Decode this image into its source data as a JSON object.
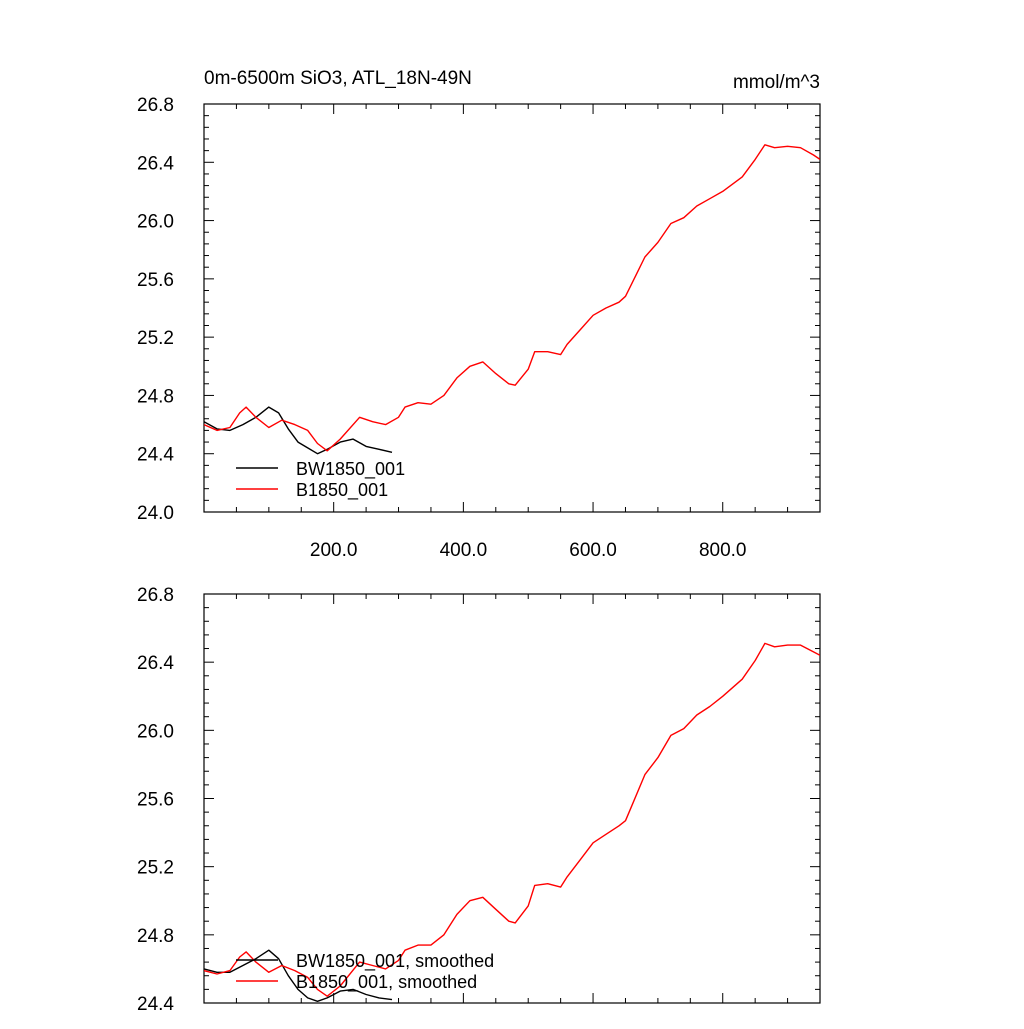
{
  "chart_data": [
    {
      "type": "line",
      "title": "0m-6500m SiO3, ATL_18N-49N",
      "units": "mmol/m^3",
      "xlabel": "",
      "ylabel": "",
      "xlim": [
        0,
        950
      ],
      "ylim": [
        24.0,
        26.8
      ],
      "xticks": [
        200,
        400,
        600,
        800
      ],
      "xtick_labels": [
        "200.0",
        "400.0",
        "600.0",
        "800.0"
      ],
      "yticks": [
        24.0,
        24.4,
        24.8,
        25.2,
        25.6,
        26.0,
        26.4,
        26.8
      ],
      "ytick_labels": [
        "24.0",
        "24.4",
        "24.8",
        "25.2",
        "25.6",
        "26.0",
        "26.4",
        "26.8"
      ],
      "grid": false,
      "legend": "bottom-left",
      "series": [
        {
          "name": "BW1850_001",
          "color": "#000000",
          "x": [
            0,
            20,
            40,
            60,
            80,
            100,
            115,
            130,
            145,
            160,
            175,
            190,
            210,
            230,
            250,
            270,
            290
          ],
          "y": [
            24.62,
            24.57,
            24.56,
            24.6,
            24.65,
            24.72,
            24.68,
            24.57,
            24.48,
            24.44,
            24.4,
            24.43,
            24.48,
            24.5,
            24.45,
            24.43,
            24.41
          ]
        },
        {
          "name": "B1850_001",
          "color": "#ff0000",
          "x": [
            0,
            20,
            40,
            55,
            65,
            80,
            100,
            120,
            140,
            160,
            175,
            190,
            210,
            240,
            260,
            280,
            300,
            310,
            330,
            350,
            370,
            390,
            410,
            430,
            450,
            470,
            480,
            500,
            510,
            530,
            550,
            560,
            580,
            600,
            620,
            640,
            650,
            660,
            680,
            700,
            720,
            740,
            760,
            780,
            800,
            830,
            850,
            865,
            880,
            900,
            920,
            940,
            950
          ],
          "y": [
            24.6,
            24.56,
            24.58,
            24.68,
            24.72,
            24.65,
            24.58,
            24.63,
            24.6,
            24.56,
            24.47,
            24.42,
            24.5,
            24.65,
            24.62,
            24.6,
            24.65,
            24.72,
            24.75,
            24.74,
            24.8,
            24.92,
            25.0,
            25.03,
            24.95,
            24.88,
            24.87,
            24.98,
            25.1,
            25.1,
            25.08,
            25.15,
            25.25,
            25.35,
            25.4,
            25.44,
            25.48,
            25.57,
            25.75,
            25.85,
            25.98,
            26.02,
            26.1,
            26.15,
            26.2,
            26.3,
            26.42,
            26.52,
            26.5,
            26.51,
            26.5,
            26.45,
            26.42
          ]
        }
      ]
    },
    {
      "type": "line",
      "title": "",
      "xlabel": "",
      "ylabel": "",
      "xlim": [
        0,
        950
      ],
      "ylim": [
        24.4,
        26.8
      ],
      "xticks": [
        200,
        400,
        600,
        800
      ],
      "xtick_labels": [],
      "yticks": [
        24.4,
        24.8,
        25.2,
        25.6,
        26.0,
        26.4,
        26.8
      ],
      "ytick_labels": [
        "24.4",
        "24.8",
        "25.2",
        "25.6",
        "26.0",
        "26.4",
        "26.8"
      ],
      "grid": false,
      "legend": "bottom-left",
      "series": [
        {
          "name": "BW1850_001, smoothed",
          "color": "#000000",
          "x": [
            0,
            20,
            40,
            60,
            80,
            100,
            115,
            130,
            145,
            160,
            175,
            190,
            210,
            230,
            250,
            270,
            290
          ],
          "y": [
            24.6,
            24.58,
            24.58,
            24.62,
            24.66,
            24.71,
            24.66,
            24.56,
            24.48,
            24.43,
            24.41,
            24.43,
            24.47,
            24.48,
            24.45,
            24.43,
            24.42
          ]
        },
        {
          "name": "B1850_001, smoothed",
          "color": "#ff0000",
          "x": [
            0,
            20,
            40,
            55,
            65,
            80,
            100,
            120,
            140,
            160,
            175,
            190,
            210,
            240,
            260,
            280,
            300,
            310,
            330,
            350,
            370,
            390,
            410,
            430,
            450,
            470,
            480,
            500,
            510,
            530,
            550,
            560,
            580,
            600,
            620,
            640,
            650,
            660,
            680,
            700,
            720,
            740,
            760,
            780,
            800,
            830,
            850,
            865,
            880,
            900,
            920,
            940,
            950
          ],
          "y": [
            24.59,
            24.57,
            24.59,
            24.67,
            24.7,
            24.64,
            24.58,
            24.62,
            24.59,
            24.55,
            24.48,
            24.44,
            24.5,
            24.64,
            24.62,
            24.6,
            24.65,
            24.71,
            24.74,
            24.74,
            24.8,
            24.92,
            25.0,
            25.02,
            24.95,
            24.88,
            24.87,
            24.97,
            25.09,
            25.1,
            25.08,
            25.14,
            25.24,
            25.34,
            25.39,
            25.44,
            25.47,
            25.56,
            25.74,
            25.84,
            25.97,
            26.01,
            26.09,
            26.14,
            26.2,
            26.3,
            26.41,
            26.51,
            26.49,
            26.5,
            26.5,
            26.46,
            26.44
          ]
        }
      ]
    }
  ]
}
